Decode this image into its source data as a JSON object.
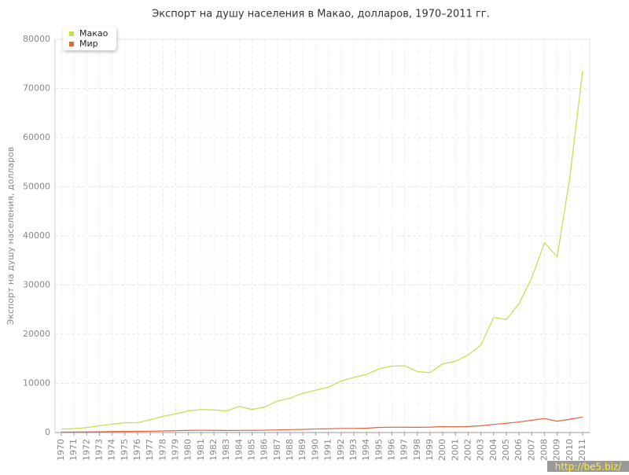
{
  "chart_data": {
    "type": "line",
    "title": "Экспорт на душу населения в Макао, долларов, 1970–2011 гг.",
    "y_label": "Экспорт на душу населения, долларов",
    "categories": [
      "1970",
      "1971",
      "1972",
      "1973",
      "1974",
      "1975",
      "1976",
      "1977",
      "1978",
      "1979",
      "1980",
      "1981",
      "1982",
      "1983",
      "1984",
      "1985",
      "1986",
      "1987",
      "1988",
      "1989",
      "1990",
      "1991",
      "1992",
      "1993",
      "1994",
      "1995",
      "1996",
      "1997",
      "1998",
      "1999",
      "2000",
      "2001",
      "2002",
      "2003",
      "2004",
      "2005",
      "2006",
      "2007",
      "2008",
      "2009",
      "2010",
      "2011"
    ],
    "series": [
      {
        "name": "Макао",
        "color": "#c5de4e",
        "values": [
          700,
          800,
          1000,
          1400,
          1700,
          2000,
          2000,
          2600,
          3300,
          3800,
          4400,
          4700,
          4600,
          4400,
          5300,
          4700,
          5200,
          6400,
          7000,
          8000,
          8600,
          9200,
          10500,
          11200,
          11800,
          13000,
          13500,
          13600,
          12400,
          12200,
          14000,
          14500,
          15800,
          17800,
          23400,
          23000,
          26200,
          31500,
          38600,
          35800,
          52000,
          73600
        ]
      },
      {
        "name": "Мир",
        "color": "#e0643c",
        "values": [
          90,
          100,
          120,
          150,
          200,
          220,
          240,
          270,
          320,
          380,
          440,
          470,
          440,
          420,
          430,
          440,
          470,
          530,
          590,
          640,
          730,
          760,
          830,
          830,
          880,
          1040,
          1070,
          1080,
          1060,
          1100,
          1200,
          1160,
          1220,
          1380,
          1650,
          1880,
          2150,
          2500,
          2850,
          2300,
          2700,
          3150
        ]
      }
    ],
    "ylim": [
      0,
      80000
    ],
    "yticks": [
      0,
      10000,
      20000,
      30000,
      40000,
      50000,
      60000,
      70000,
      80000
    ],
    "grid": true,
    "legend": "top-left",
    "watermark": "http://be5.biz/"
  }
}
